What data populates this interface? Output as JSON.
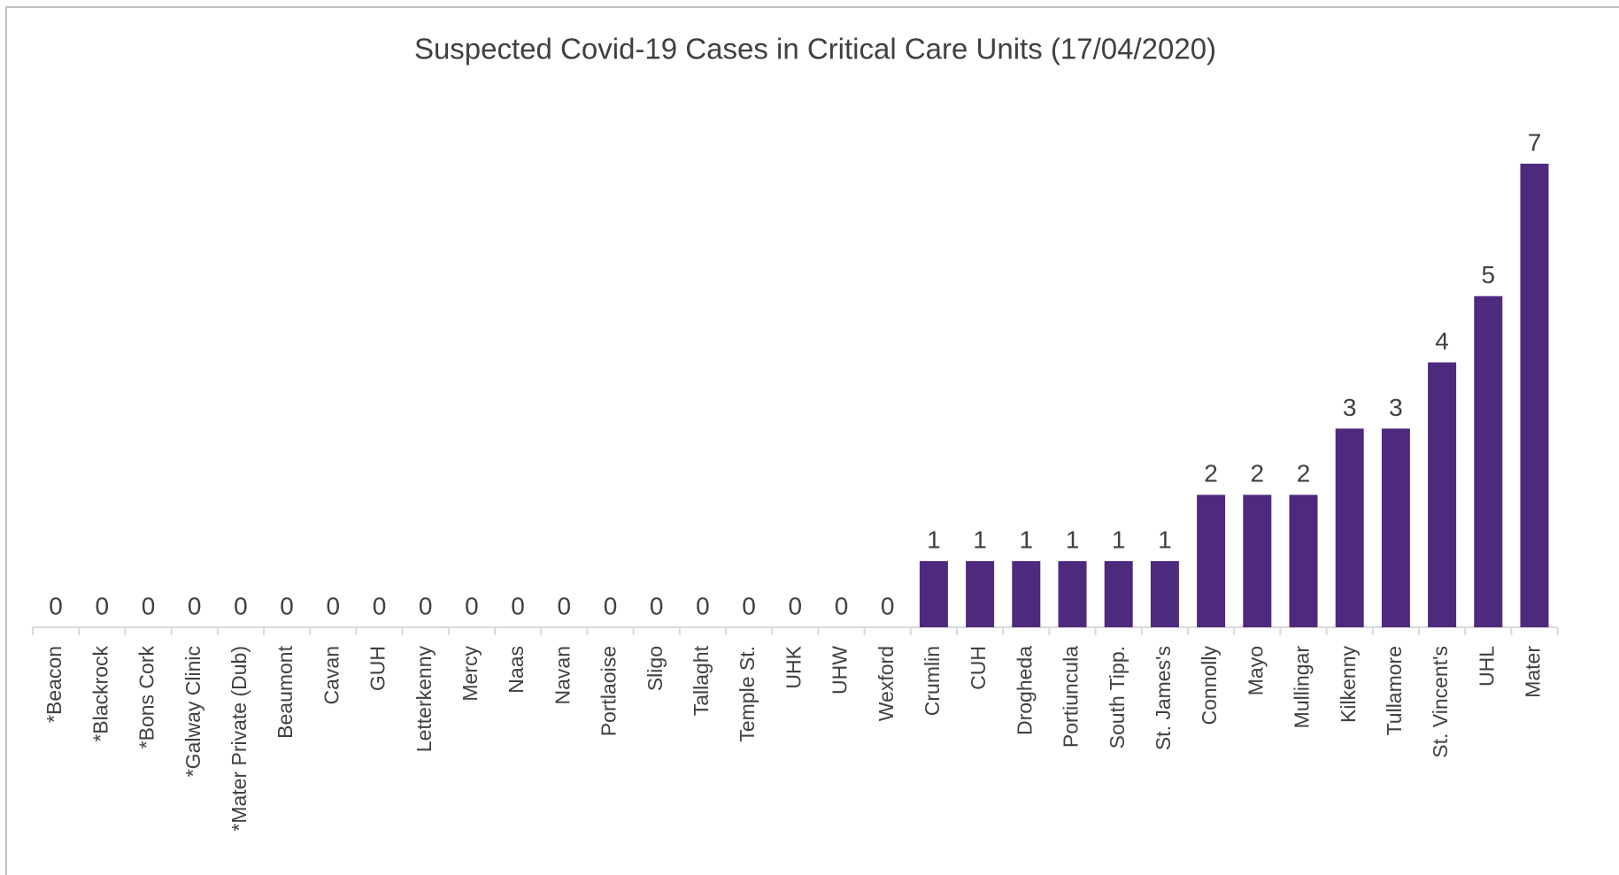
{
  "chart_data": {
    "type": "bar",
    "title": "Suspected Covid-19 Cases in Critical Care Units (17/04/2020)",
    "categories": [
      "*Beacon",
      "*Blackrock",
      "*Bons Cork",
      "*Galway Clinic",
      "*Mater Private (Dub)",
      "Beaumont",
      "Cavan",
      "GUH",
      "Letterkenny",
      "Mercy",
      "Naas",
      "Navan",
      "Portlaoise",
      "Sligo",
      "Tallaght",
      "Temple St.",
      "UHK",
      "UHW",
      "Wexford",
      "Crumlin",
      "CUH",
      "Drogheda",
      "Portiuncula",
      "South Tipp.",
      "St. James's",
      "Connolly",
      "Mayo",
      "Mullingar",
      "Kilkenny",
      "Tullamore",
      "St. Vincent's",
      "UHL",
      "Mater"
    ],
    "values": [
      0,
      0,
      0,
      0,
      0,
      0,
      0,
      0,
      0,
      0,
      0,
      0,
      0,
      0,
      0,
      0,
      0,
      0,
      0,
      1,
      1,
      1,
      1,
      1,
      1,
      2,
      2,
      2,
      3,
      3,
      4,
      5,
      7
    ],
    "color": "#4e2a7e"
  }
}
